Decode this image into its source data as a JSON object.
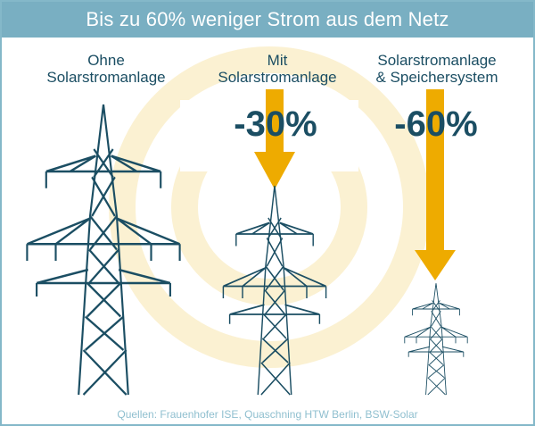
{
  "title": "Bis zu 60% weniger Strom aus dem Netz",
  "columns": [
    {
      "label_line1": "Ohne",
      "label_line2": "Solarstromanlage",
      "reduction": ""
    },
    {
      "label_line1": "Mit",
      "label_line2": "Solarstromanlage",
      "reduction": "-30%"
    },
    {
      "label_line1": "Solarstromanlage",
      "label_line2": "& Speichersystem",
      "reduction": "-60%"
    }
  ],
  "source": "Quellen: Frauenhofer ISE, Quaschning HTW Berlin, BSW-Solar",
  "colors": {
    "header_bg": "#79afc2",
    "tower": "#1b4e63",
    "arrow": "#eeab00",
    "deco_rings": "#fbf1d2",
    "source_text": "#8fbfcf"
  },
  "icons": [
    "pylon-icon",
    "down-arrow-icon"
  ]
}
